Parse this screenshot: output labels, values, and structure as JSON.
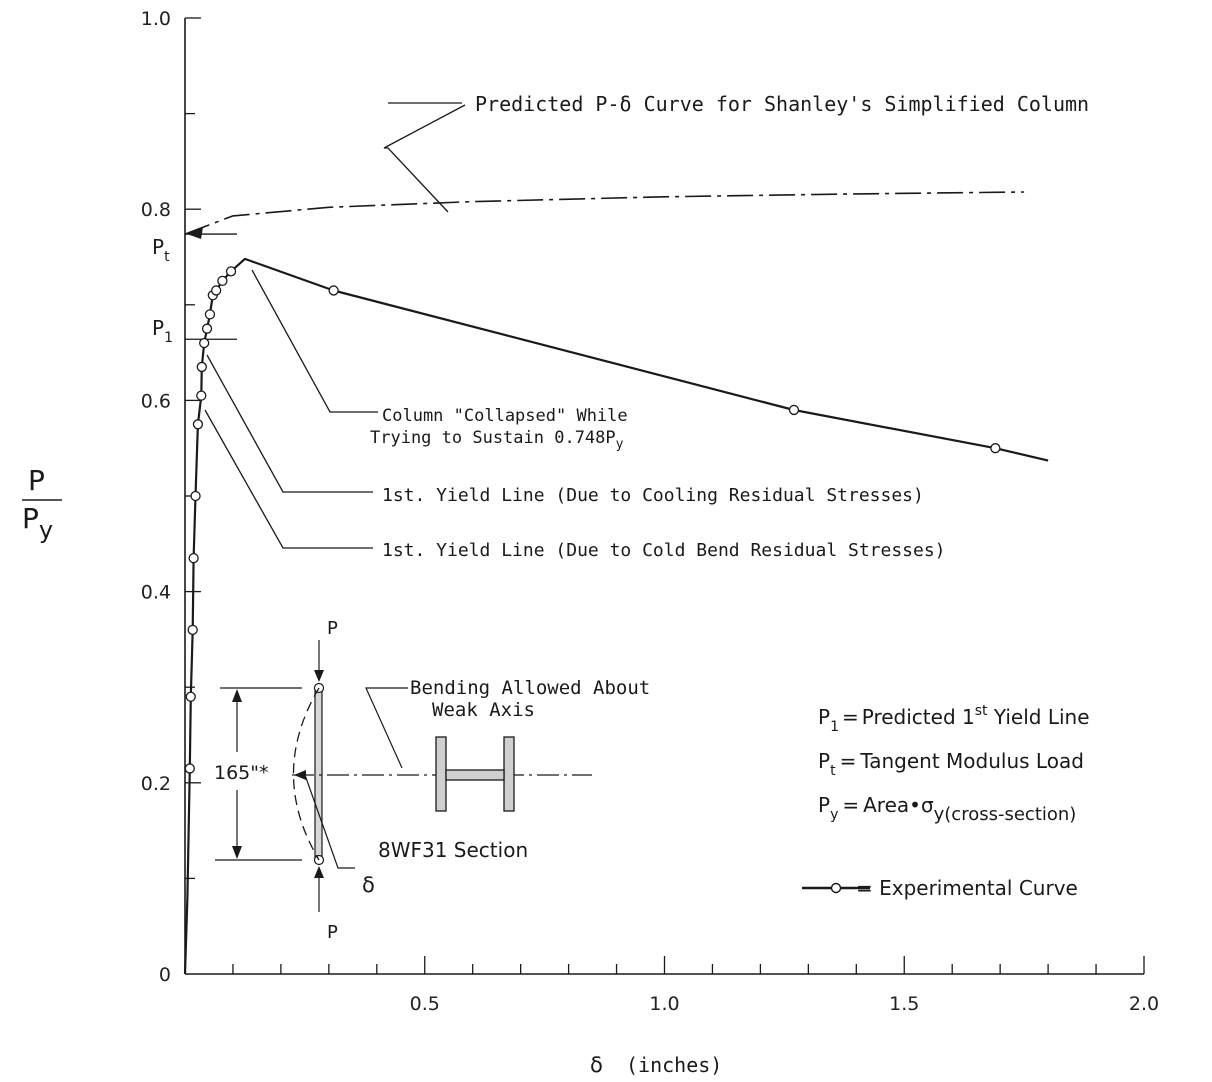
{
  "chart_data": {
    "type": "line",
    "x_ticks": [
      "0.5",
      "1.0",
      "1.5",
      "2.0"
    ],
    "y_ticks": [
      "0",
      "0.2",
      "0.4",
      "0.6",
      "0.8",
      "1.0"
    ],
    "xlim": [
      0,
      2.0
    ],
    "ylim": [
      0,
      1.0
    ],
    "grid": false,
    "xlabel": {
      "symbol": "δ",
      "unit": "(inches)"
    },
    "ylabel": {
      "numerator": "P",
      "denominator": "P",
      "denominator_sub": "y"
    },
    "series": [
      {
        "name": "Experimental Curve",
        "style": "solid line with open circles",
        "points": [
          [
            0.0,
            0.0
          ],
          [
            0.005,
            0.08
          ],
          [
            0.01,
            0.215
          ],
          [
            0.012,
            0.29
          ],
          [
            0.016,
            0.36
          ],
          [
            0.018,
            0.435
          ],
          [
            0.022,
            0.5
          ],
          [
            0.027,
            0.575
          ],
          [
            0.034,
            0.605
          ],
          [
            0.035,
            0.635
          ],
          [
            0.04,
            0.66
          ],
          [
            0.046,
            0.675
          ],
          [
            0.052,
            0.69
          ],
          [
            0.058,
            0.71
          ],
          [
            0.065,
            0.715
          ],
          [
            0.078,
            0.725
          ],
          [
            0.096,
            0.735
          ],
          [
            0.125,
            0.748
          ],
          [
            0.31,
            0.715
          ],
          [
            1.27,
            0.59
          ],
          [
            1.69,
            0.55
          ],
          [
            1.8,
            0.537
          ]
        ],
        "markers": [
          [
            0.01,
            0.215
          ],
          [
            0.012,
            0.29
          ],
          [
            0.016,
            0.36
          ],
          [
            0.018,
            0.435
          ],
          [
            0.022,
            0.5
          ],
          [
            0.027,
            0.575
          ],
          [
            0.034,
            0.605
          ],
          [
            0.035,
            0.635
          ],
          [
            0.04,
            0.66
          ],
          [
            0.046,
            0.675
          ],
          [
            0.052,
            0.69
          ],
          [
            0.058,
            0.71
          ],
          [
            0.065,
            0.715
          ],
          [
            0.078,
            0.725
          ],
          [
            0.096,
            0.735
          ],
          [
            0.31,
            0.715
          ],
          [
            1.27,
            0.59
          ],
          [
            1.69,
            0.55
          ]
        ]
      },
      {
        "name": "Predicted P-δ Curve for Shanley's Simplified Column",
        "style": "dash-dot",
        "points": [
          [
            0.0,
            0.774
          ],
          [
            0.1,
            0.793
          ],
          [
            0.3,
            0.802
          ],
          [
            0.6,
            0.808
          ],
          [
            1.0,
            0.813
          ],
          [
            1.4,
            0.816
          ],
          [
            1.75,
            0.818
          ]
        ]
      }
    ],
    "reference_marks": [
      {
        "label": "P",
        "sub": "t",
        "y": 0.774
      },
      {
        "label": "P",
        "sub": "1",
        "y": 0.664
      }
    ],
    "annotations": {
      "shanley": "Predicted  P-δ Curve for Shanley's Simplified Column",
      "collapse_1": "Column \"Collapsed\" While",
      "collapse_2": "Trying to Sustain 0.748P",
      "collapse_2_sub": "y",
      "yield_cooling": "1st. Yield Line (Due to Cooling Residual Stresses)",
      "yield_cold": "1st. Yield Line (Due to Cold Bend Residual Stresses)"
    },
    "sketch": {
      "load_top": "P",
      "load_bottom": "P",
      "length": "165\"*",
      "bending_1": "Bending Allowed About",
      "bending_2": "Weak Axis",
      "section": "8WF31 Section",
      "delta": "δ"
    },
    "legend": {
      "p1_lhs": "P",
      "p1_sub": "1",
      "p1_eq": "=",
      "p1_text": "Predicted 1",
      "p1_sup": "st",
      "p1_tail": " Yield Line",
      "pt_lhs": "P",
      "pt_sub": "t",
      "pt_eq": "=",
      "pt_text": "Tangent Modulus Load",
      "py_lhs": "P",
      "py_sub": "y",
      "py_eq": "=",
      "py_text": "Area•σ",
      "py_text_sub": "y(cross-section)",
      "exp_text": "= Experimental Curve"
    }
  }
}
